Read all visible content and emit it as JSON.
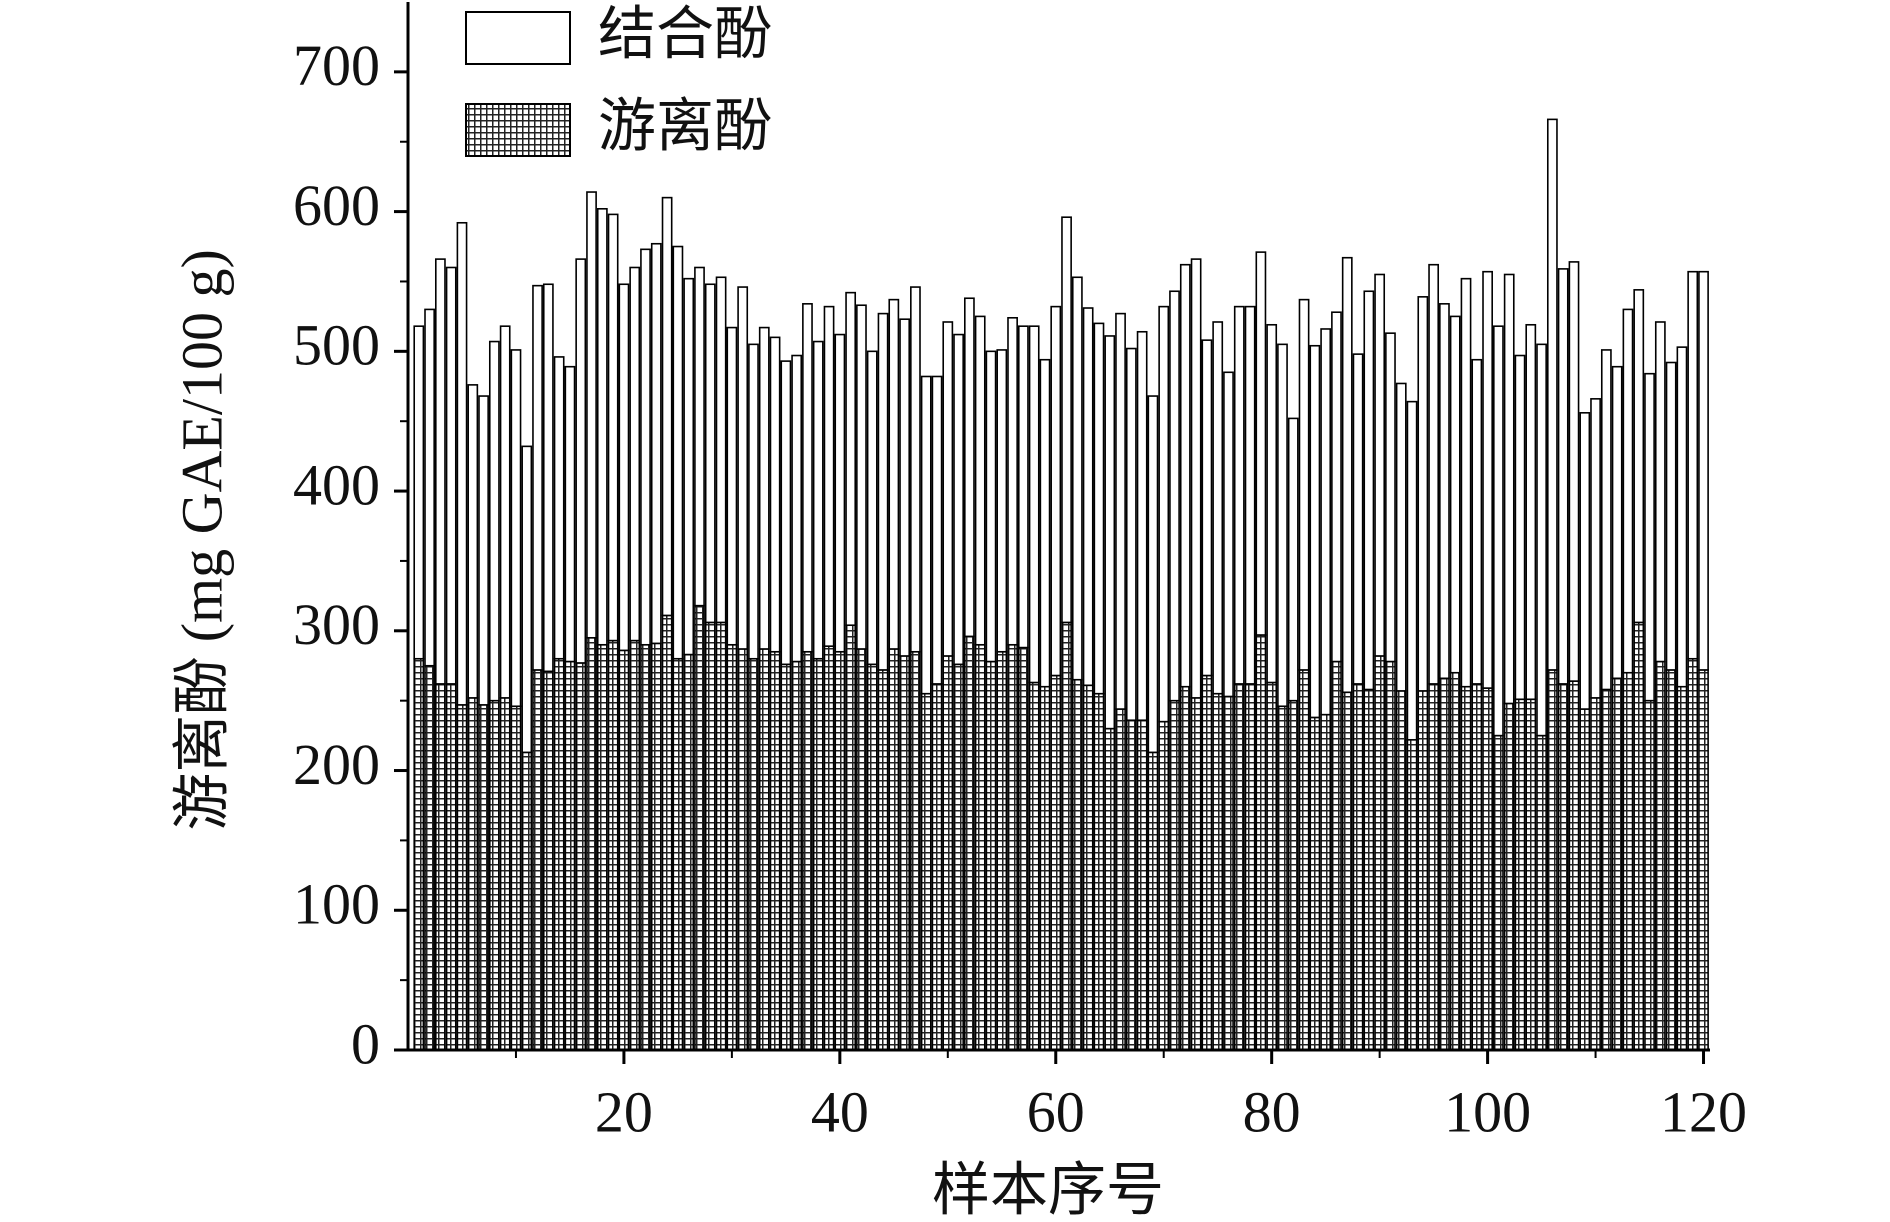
{
  "chart_data": {
    "type": "stacked_bar",
    "x_label": "样本序号",
    "y_label": "游离酚 (mg GAE/100 g)",
    "x": [
      1,
      2,
      3,
      4,
      5,
      6,
      7,
      8,
      9,
      10,
      11,
      12,
      13,
      14,
      15,
      16,
      17,
      18,
      19,
      20,
      21,
      22,
      23,
      24,
      25,
      26,
      27,
      28,
      29,
      30,
      31,
      32,
      33,
      34,
      35,
      36,
      37,
      38,
      39,
      40,
      41,
      42,
      43,
      44,
      45,
      46,
      47,
      48,
      49,
      50,
      51,
      52,
      53,
      54,
      55,
      56,
      57,
      58,
      59,
      60,
      61,
      62,
      63,
      64,
      65,
      66,
      67,
      68,
      69,
      70,
      71,
      72,
      73,
      74,
      75,
      76,
      77,
      78,
      79,
      80,
      81,
      82,
      83,
      84,
      85,
      86,
      87,
      88,
      89,
      90,
      91,
      92,
      93,
      94,
      95,
      96,
      97,
      98,
      99,
      100,
      101,
      102,
      103,
      104,
      105,
      106,
      107,
      108,
      109,
      110,
      111,
      112,
      113,
      114,
      115,
      116,
      117,
      118,
      119,
      120
    ],
    "series": [
      {
        "name": "结合酚",
        "color": "#ffffff",
        "values": [
          238,
          255,
          304,
          298,
          345,
          224,
          221,
          257,
          266,
          255,
          219,
          275,
          277,
          216,
          211,
          289,
          319,
          312,
          305,
          262,
          267,
          283,
          286,
          299,
          295,
          269,
          242,
          242,
          247,
          227,
          259,
          225,
          230,
          225,
          217,
          219,
          249,
          227,
          243,
          227,
          238,
          246,
          224,
          255,
          250,
          241,
          261,
          227,
          220,
          239,
          236,
          242,
          235,
          222,
          216,
          234,
          230,
          255,
          234,
          264,
          290,
          288,
          270,
          265,
          281,
          283,
          266,
          278,
          255,
          297,
          293,
          302,
          314,
          240,
          266,
          232,
          270,
          270,
          274,
          256,
          259,
          202,
          265,
          266,
          276,
          250,
          311,
          236,
          285,
          273,
          235,
          220,
          242,
          282,
          300,
          268,
          255,
          292,
          232,
          298,
          293,
          307,
          246,
          268,
          280,
          394,
          297,
          300,
          212,
          214,
          243,
          223,
          260,
          238,
          234,
          243,
          220,
          243,
          277,
          285
        ]
      },
      {
        "name": "游离酚",
        "color": "#222222",
        "values": [
          280,
          275,
          262,
          262,
          247,
          252,
          247,
          250,
          252,
          246,
          213,
          272,
          271,
          280,
          278,
          277,
          295,
          290,
          293,
          286,
          293,
          290,
          291,
          311,
          280,
          283,
          318,
          306,
          306,
          290,
          287,
          280,
          287,
          285,
          276,
          278,
          285,
          280,
          289,
          285,
          304,
          287,
          276,
          272,
          287,
          282,
          285,
          255,
          262,
          282,
          276,
          296,
          290,
          278,
          285,
          290,
          288,
          263,
          260,
          268,
          306,
          265,
          261,
          255,
          230,
          244,
          236,
          236,
          213,
          235,
          250,
          260,
          252,
          268,
          255,
          253,
          262,
          262,
          297,
          263,
          246,
          250,
          272,
          238,
          240,
          278,
          256,
          262,
          258,
          282,
          278,
          257,
          222,
          257,
          262,
          266,
          270,
          260,
          262,
          259,
          225,
          248,
          251,
          251,
          225,
          272,
          262,
          264,
          244,
          252,
          258,
          266,
          270,
          306,
          250,
          278,
          272,
          260,
          280,
          272
        ]
      }
    ],
    "xlim": [
      0,
      120.6
    ],
    "xticks": [
      20,
      40,
      60,
      80,
      100,
      120
    ],
    "ylim": [
      0,
      750
    ],
    "yticks": [
      0,
      100,
      200,
      300,
      400,
      500,
      600,
      700
    ],
    "legend": "top-left"
  }
}
